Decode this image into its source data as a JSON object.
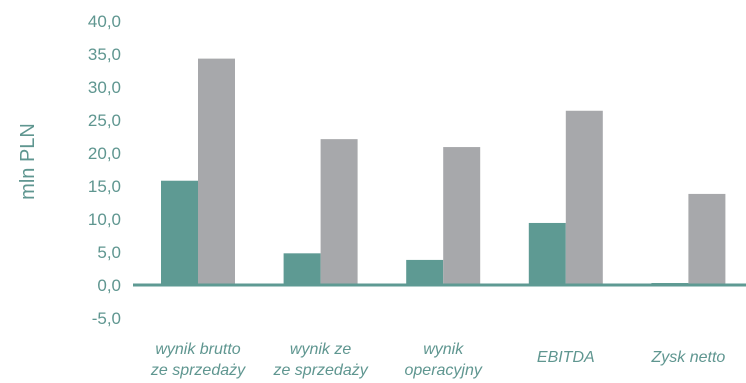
{
  "chart_data": {
    "type": "bar",
    "ylabel": "mln PLN",
    "ylim": [
      -5,
      40
    ],
    "yticks": [
      "40,0",
      "35,0",
      "30,0",
      "25,0",
      "20,0",
      "15,0",
      "10,0",
      "5,0",
      "0,0",
      "-5,0"
    ],
    "categories": [
      [
        "wynik brutto",
        "ze sprzedaży"
      ],
      [
        "wynik ze",
        "ze sprzedaży"
      ],
      [
        "wynik",
        "operacyjny"
      ],
      [
        "EBITDA"
      ],
      [
        "Zysk netto"
      ]
    ],
    "series": [
      {
        "color": "#5e9a93",
        "values": [
          15.8,
          4.8,
          3.8,
          9.4,
          0.3
        ]
      },
      {
        "color": "#a7a8ab",
        "values": [
          34.3,
          22.1,
          20.9,
          26.4,
          13.8
        ]
      }
    ],
    "grid": false,
    "zero_line_color": "#5e9a93"
  }
}
